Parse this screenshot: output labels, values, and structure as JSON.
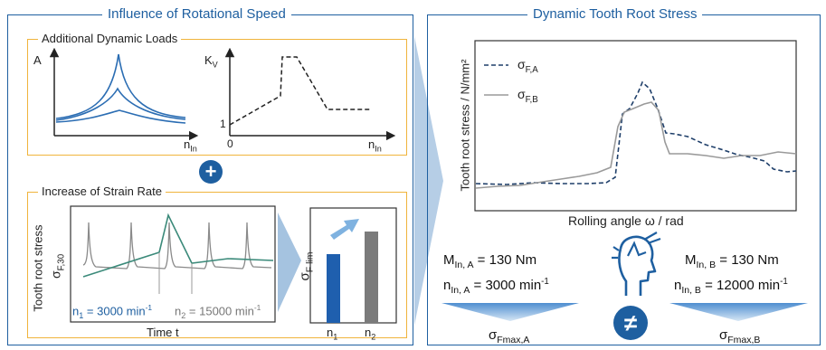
{
  "left_panel": {
    "title": "Influence of Rotational Speed",
    "dynamic_loads": {
      "title": "Additional Dynamic Loads",
      "chart_a": {
        "ylabel": "A",
        "xlabel_main": "n",
        "xlabel_sub": "In"
      },
      "chart_kv": {
        "ylabel_main": "K",
        "ylabel_sub": "V",
        "xlabel_main": "n",
        "xlabel_sub": "In",
        "y_tick": "1",
        "x_tick": "0"
      }
    },
    "plus_symbol": "+",
    "strain_rate": {
      "title": "Increase of Strain Rate",
      "ylabel": "Tooth root stress",
      "sigma_label_main": "σ",
      "sigma_label_sub": "F,30",
      "xlabel": "Time t",
      "n1_label_main": "n",
      "n1_label_sub": "1",
      "n1_label_rest": " = 3000 min",
      "n1_label_sup": "-1",
      "n2_label_main": "n",
      "n2_label_sub": "2",
      "n2_label_rest": " = 15000 min",
      "n2_label_sup": "-1",
      "bar_ylabel_main": "σ",
      "bar_ylabel_sub": "F lim",
      "bar_cat_1_main": "n",
      "bar_cat_1_sub": "1",
      "bar_cat_2_main": "n",
      "bar_cat_2_sub": "2"
    }
  },
  "right_panel": {
    "title": "Dynamic Tooth Root Stress",
    "ylabel": "Tooth root stress / N/mm²",
    "xlabel": "Rolling angle ω / rad",
    "legend_a_main": "σ",
    "legend_a_sub": "F,A",
    "legend_b_main": "σ",
    "legend_b_sub": "F,B",
    "case_a": {
      "m_main": "M",
      "m_sub": "In, A",
      "m_val": " = 130 Nm",
      "n_main": "n",
      "n_sub": "In, A",
      "n_val": " = 3000 min",
      "n_sup": "-1",
      "result_main": "σ",
      "result_sub": "Fmax,A"
    },
    "case_b": {
      "m_main": "M",
      "m_sub": "In, B",
      "m_val": " = 130 Nm",
      "n_main": "n",
      "n_sub": "In, B",
      "n_val": " = 12000 min",
      "n_sup": "-1",
      "result_main": "σ",
      "result_sub": "Fmax,B"
    },
    "not_equal_symbol": "≠"
  },
  "colors": {
    "frame_blue": "#1e5fa0",
    "sub_orange": "#f0b43c",
    "bar_blue": "#1f5fae",
    "bar_gray": "#7b7b7b",
    "line_gray": "#9a9a9a"
  },
  "icons": [
    "plus-icon",
    "person-head-icon",
    "not-equal-icon",
    "arrow-up-right-icon",
    "chevron-right-icon"
  ]
}
